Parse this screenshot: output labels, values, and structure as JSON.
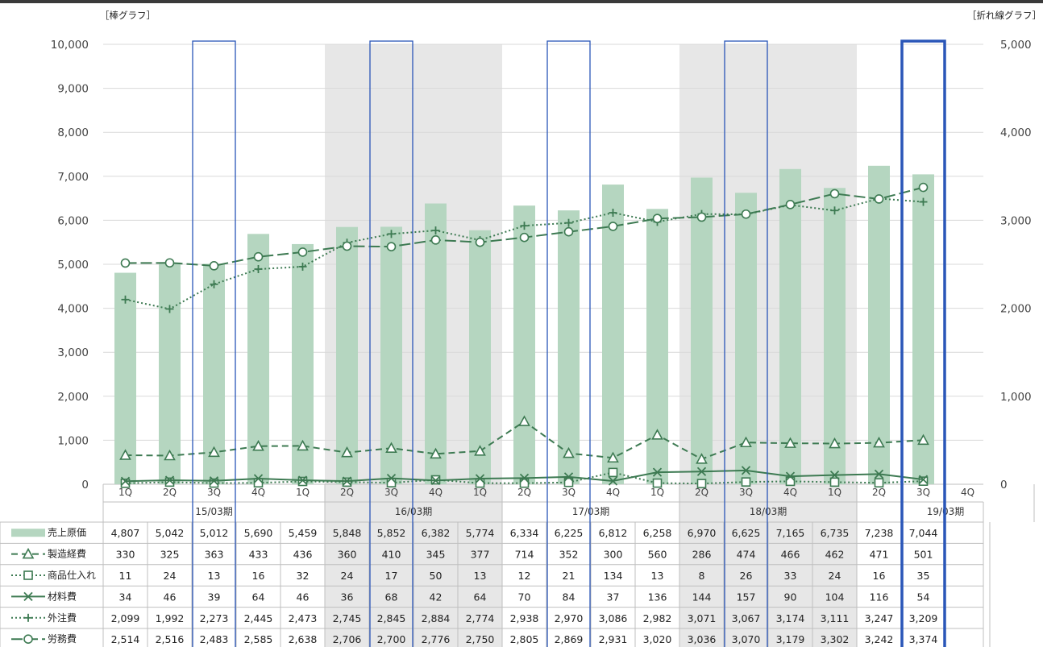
{
  "chart_data": {
    "type": "bar+line",
    "left_axis_title": "［棒グラフ］",
    "right_axis_title": "［折れ線グラフ］",
    "left_ylim": [
      0,
      10000
    ],
    "right_ylim": [
      0,
      5000
    ],
    "left_ticks": [
      "0",
      "1,000",
      "2,000",
      "3,000",
      "4,000",
      "5,000",
      "6,000",
      "7,000",
      "8,000",
      "9,000",
      "10,000"
    ],
    "right_ticks": [
      "0",
      "1,000",
      "2,000",
      "3,000",
      "4,000",
      "5,000"
    ],
    "quarters": [
      "1Q",
      "2Q",
      "3Q",
      "4Q",
      "1Q",
      "2Q",
      "3Q",
      "4Q",
      "1Q",
      "2Q",
      "3Q",
      "4Q",
      "1Q",
      "2Q",
      "3Q",
      "4Q",
      "1Q",
      "2Q",
      "3Q",
      "4Q"
    ],
    "fiscal_years": [
      "15/03期",
      "16/03期",
      "17/03期",
      "18/03期",
      "19/03期"
    ],
    "shaded_years": [
      1,
      3
    ],
    "highlight_quarters": [
      2,
      6,
      10,
      14,
      18
    ],
    "current_quarter": 18,
    "series": [
      {
        "name": "売上原価",
        "type": "bar",
        "axis": "left",
        "color": "#b5d6c0",
        "values": [
          4807,
          5042,
          5012,
          5690,
          5459,
          5848,
          5852,
          6382,
          5774,
          6334,
          6225,
          6812,
          6258,
          6970,
          6625,
          7165,
          6735,
          7238,
          7044
        ],
        "labels": [
          "4,807",
          "5,042",
          "5,012",
          "5,690",
          "5,459",
          "5,848",
          "5,852",
          "6,382",
          "5,774",
          "6,334",
          "6,225",
          "6,812",
          "6,258",
          "6,970",
          "6,625",
          "7,165",
          "6,735",
          "7,238",
          "7,044"
        ]
      },
      {
        "name": "製造経費",
        "type": "line",
        "axis": "right",
        "dash": "8,5",
        "marker": "triangle",
        "color": "#3d7a52",
        "values": [
          330,
          325,
          363,
          433,
          436,
          360,
          410,
          345,
          377,
          714,
          352,
          300,
          560,
          286,
          474,
          466,
          462,
          471,
          501
        ],
        "labels": [
          "330",
          "325",
          "363",
          "433",
          "436",
          "360",
          "410",
          "345",
          "377",
          "714",
          "352",
          "300",
          "560",
          "286",
          "474",
          "466",
          "462",
          "471",
          "501"
        ]
      },
      {
        "name": "商品仕入れ",
        "type": "line",
        "axis": "right",
        "dash": "2,3",
        "marker": "square",
        "color": "#3d7a52",
        "values": [
          11,
          24,
          13,
          16,
          32,
          24,
          17,
          50,
          13,
          12,
          21,
          134,
          13,
          8,
          26,
          33,
          24,
          16,
          35
        ],
        "labels": [
          "11",
          "24",
          "13",
          "16",
          "32",
          "24",
          "17",
          "50",
          "13",
          "12",
          "21",
          "134",
          "13",
          "8",
          "26",
          "33",
          "24",
          "16",
          "35"
        ]
      },
      {
        "name": "材料費",
        "type": "line",
        "axis": "right",
        "dash": "",
        "marker": "x",
        "color": "#3d7a52",
        "values": [
          34,
          46,
          39,
          64,
          46,
          36,
          68,
          42,
          64,
          70,
          84,
          37,
          136,
          144,
          157,
          90,
          104,
          116,
          54
        ],
        "labels": [
          "34",
          "46",
          "39",
          "64",
          "46",
          "36",
          "68",
          "42",
          "64",
          "70",
          "84",
          "37",
          "136",
          "144",
          "157",
          "90",
          "104",
          "116",
          "54"
        ]
      },
      {
        "name": "外注費",
        "type": "line",
        "axis": "right",
        "dash": "2,3",
        "marker": "plus",
        "color": "#3d7a52",
        "values": [
          2099,
          1992,
          2273,
          2445,
          2473,
          2745,
          2845,
          2884,
          2774,
          2938,
          2970,
          3086,
          2982,
          3071,
          3067,
          3174,
          3111,
          3247,
          3209
        ],
        "labels": [
          "2,099",
          "1,992",
          "2,273",
          "2,445",
          "2,473",
          "2,745",
          "2,845",
          "2,884",
          "2,774",
          "2,938",
          "2,970",
          "3,086",
          "2,982",
          "3,071",
          "3,067",
          "3,174",
          "3,111",
          "3,247",
          "3,209"
        ]
      },
      {
        "name": "労務費",
        "type": "line",
        "axis": "right",
        "dash": "14,5",
        "marker": "circle",
        "color": "#3d7a52",
        "values": [
          2514,
          2516,
          2483,
          2585,
          2638,
          2706,
          2700,
          2776,
          2750,
          2805,
          2869,
          2931,
          3020,
          3036,
          3070,
          3179,
          3302,
          3242,
          3374
        ],
        "labels": [
          "2,514",
          "2,516",
          "2,483",
          "2,585",
          "2,638",
          "2,706",
          "2,700",
          "2,776",
          "2,750",
          "2,805",
          "2,869",
          "2,931",
          "3,020",
          "3,036",
          "3,070",
          "3,179",
          "3,302",
          "3,242",
          "3,374"
        ]
      }
    ]
  },
  "colors": {
    "gray_band": "#e7e7e7",
    "highlight": "#2a56b8",
    "grid": "#d9d9d9",
    "line": "#3d7a52",
    "bar": "#b5d6c0"
  }
}
